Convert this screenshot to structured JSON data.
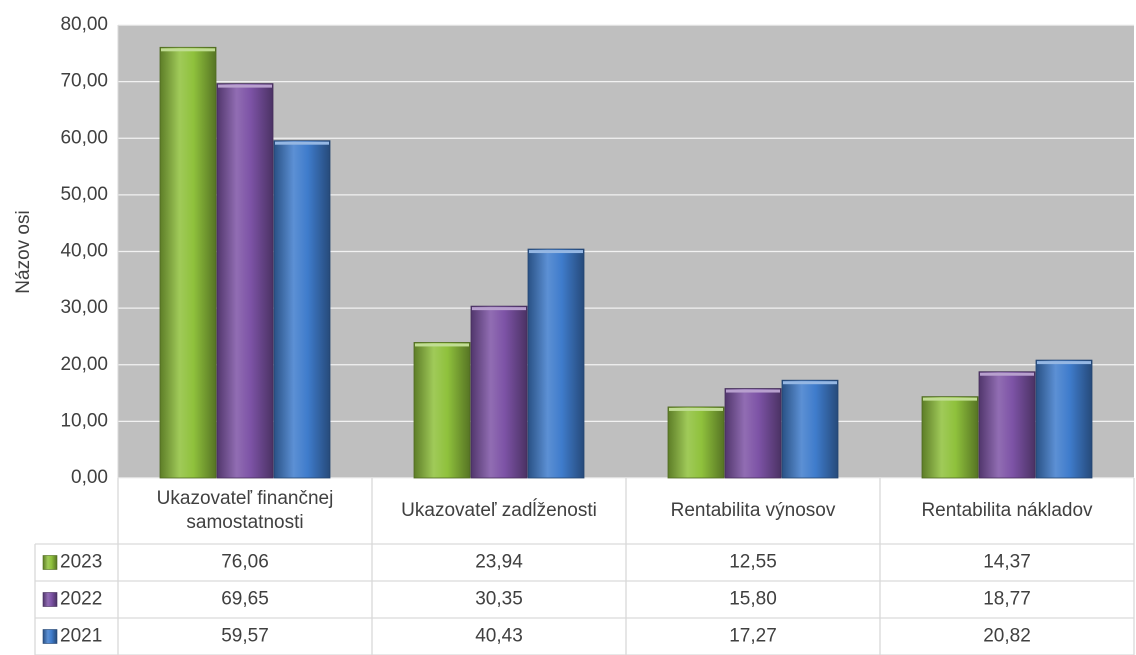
{
  "chart_data": {
    "type": "bar",
    "ylabel": "Názov osi",
    "ylim": [
      0,
      80
    ],
    "yticks": [
      "0,00",
      "10,00",
      "20,00",
      "30,00",
      "40,00",
      "50,00",
      "60,00",
      "70,00",
      "80,00"
    ],
    "grid": true,
    "categories": [
      [
        "Ukazovateľ finančnej",
        "samostatnosti"
      ],
      [
        "Ukazovateľ zadĺženosti"
      ],
      [
        "Rentabilita výnosov"
      ],
      [
        "Rentabilita nákladov"
      ]
    ],
    "series": [
      {
        "name": "2023",
        "color": "#8fc13c",
        "values": [
          76.06,
          23.94,
          12.55,
          14.37
        ],
        "labels": [
          "76,06",
          "23,94",
          "12,55",
          "14,37"
        ]
      },
      {
        "name": "2022",
        "color": "#7d53a6",
        "values": [
          69.65,
          30.35,
          15.8,
          18.77
        ],
        "labels": [
          "69,65",
          "30,35",
          "15,80",
          "18,77"
        ]
      },
      {
        "name": "2021",
        "color": "#3f7ccc",
        "values": [
          59.57,
          40.43,
          17.27,
          20.82
        ],
        "labels": [
          "59,57",
          "40,43",
          "17,27",
          "20,82"
        ]
      }
    ],
    "legend": "data-table"
  }
}
